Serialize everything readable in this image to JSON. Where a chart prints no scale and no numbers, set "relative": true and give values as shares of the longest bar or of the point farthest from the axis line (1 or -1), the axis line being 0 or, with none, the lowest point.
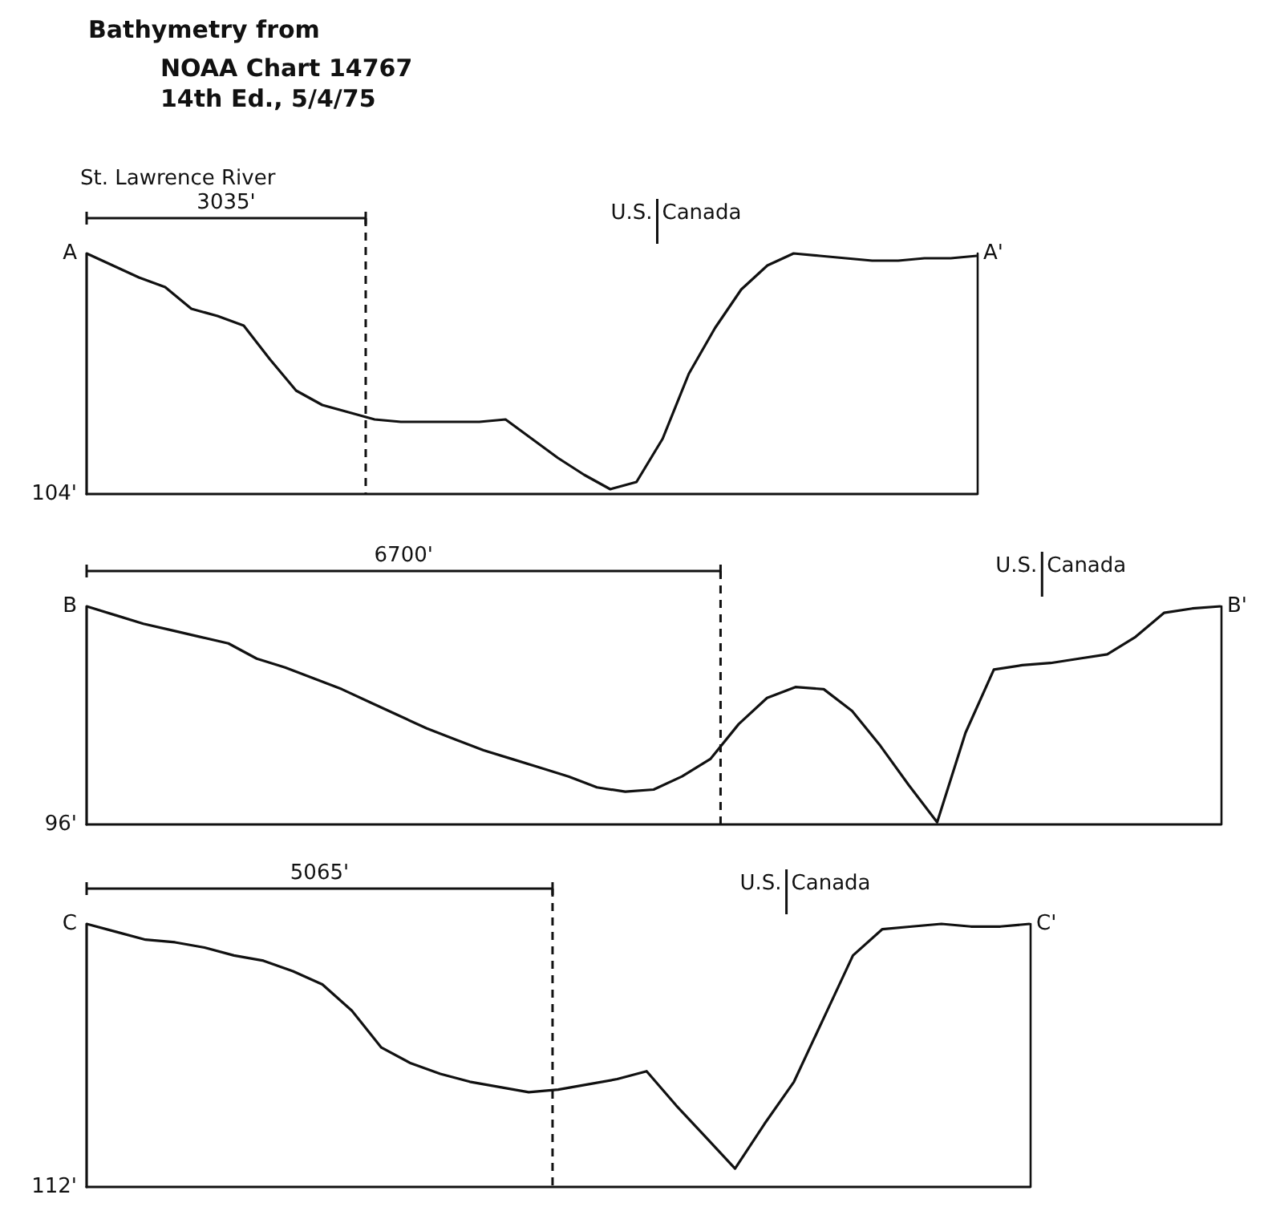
{
  "chart_data": [
    {
      "type": "line",
      "title": "Bathymetry from",
      "subtitle": "NOAA Chart 14767\n14th Ed., 5/4/75",
      "relative": true,
      "categories": [
        null,
        null,
        null,
        null,
        null,
        null,
        null,
        null,
        null,
        null,
        null,
        null,
        null,
        null,
        null,
        null,
        null,
        null,
        null,
        null,
        null,
        null,
        null,
        null,
        null,
        null,
        null,
        null,
        null,
        null,
        null,
        null,
        null,
        null,
        null
      ],
      "values": [
        1.0,
        0.95,
        0.9,
        0.86,
        0.77,
        0.74,
        0.7,
        0.56,
        0.43,
        0.37,
        0.34,
        0.31,
        0.3,
        0.3,
        0.3,
        0.3,
        0.31,
        0.23,
        0.15,
        0.08,
        0.02,
        0.05,
        0.23,
        0.5,
        0.69,
        0.85,
        0.95,
        1.0,
        0.99,
        0.98,
        0.97,
        0.97,
        0.98,
        0.98,
        0.99
      ],
      "color": "#111111",
      "annotations": [
        "A",
        "104'",
        "A'",
        "St. Lawrence River",
        "3035'",
        "U.S.",
        "Canada"
      ]
    },
    {
      "type": "line",
      "relative": true,
      "categories": [
        null,
        null,
        null,
        null,
        null,
        null,
        null,
        null,
        null,
        null,
        null,
        null,
        null,
        null,
        null,
        null,
        null,
        null,
        null,
        null,
        null,
        null,
        null,
        null,
        null,
        null,
        null,
        null,
        null,
        null,
        null,
        null,
        null,
        null,
        null,
        null,
        null,
        null,
        null,
        null,
        null
      ],
      "values": [
        1.0,
        0.96,
        0.92,
        0.89,
        0.86,
        0.83,
        0.76,
        0.72,
        0.67,
        0.62,
        0.56,
        0.5,
        0.44,
        0.39,
        0.34,
        0.3,
        0.26,
        0.22,
        0.17,
        0.15,
        0.16,
        0.22,
        0.3,
        0.46,
        0.58,
        0.63,
        0.62,
        0.52,
        0.36,
        0.18,
        0.01,
        0.42,
        0.71,
        0.73,
        0.74,
        0.76,
        0.78,
        0.86,
        0.97,
        0.99,
        1.0
      ],
      "color": "#111111",
      "annotations": [
        "B",
        "96'",
        "B'",
        "6700'",
        "U.S.",
        "Canada"
      ]
    },
    {
      "type": "line",
      "relative": true,
      "categories": [
        null,
        null,
        null,
        null,
        null,
        null,
        null,
        null,
        null,
        null,
        null,
        null,
        null,
        null,
        null,
        null,
        null,
        null,
        null,
        null,
        null,
        null,
        null,
        null,
        null,
        null,
        null,
        null,
        null,
        null,
        null,
        null,
        null
      ],
      "values": [
        1.0,
        0.97,
        0.94,
        0.93,
        0.91,
        0.88,
        0.86,
        0.82,
        0.77,
        0.67,
        0.53,
        0.47,
        0.43,
        0.4,
        0.38,
        0.36,
        0.37,
        0.39,
        0.41,
        0.44,
        0.31,
        0.19,
        0.07,
        0.24,
        0.4,
        0.64,
        0.88,
        0.98,
        0.99,
        1.0,
        0.99,
        0.99,
        1.0
      ],
      "color": "#111111",
      "annotations": [
        "C",
        "112'",
        "C'",
        "5065'",
        "U.S.",
        "Canada"
      ]
    }
  ]
}
